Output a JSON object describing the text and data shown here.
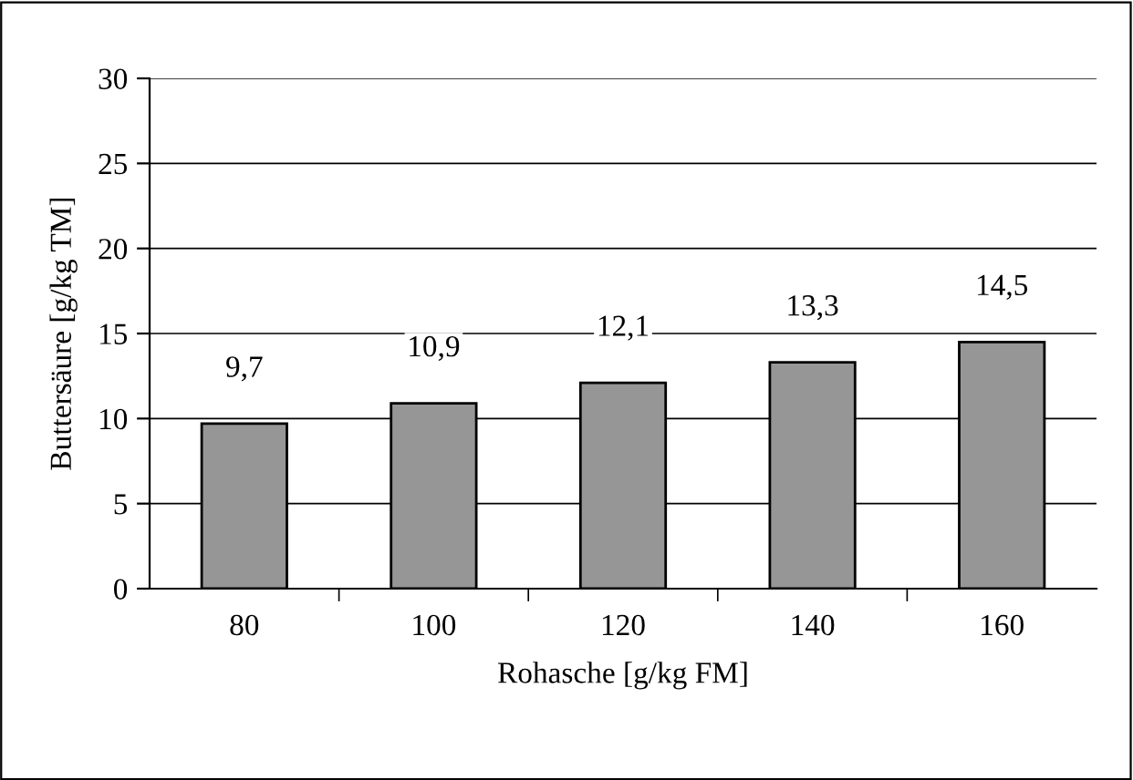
{
  "chart_data": {
    "type": "bar",
    "xlabel": "Rohasche [g/kg FM]",
    "ylabel": "Buttersäure [g/kg TM]",
    "categories": [
      "80",
      "100",
      "120",
      "140",
      "160"
    ],
    "values": [
      9.7,
      10.9,
      12.1,
      13.3,
      14.5
    ],
    "value_labels": [
      "9,7",
      "10,9",
      "12,1",
      "13,3",
      "14,5"
    ],
    "color": "#969696",
    "ylim": [
      0,
      30
    ],
    "yticks": [
      0,
      5,
      10,
      15,
      20,
      25,
      30
    ],
    "grid": "y"
  }
}
